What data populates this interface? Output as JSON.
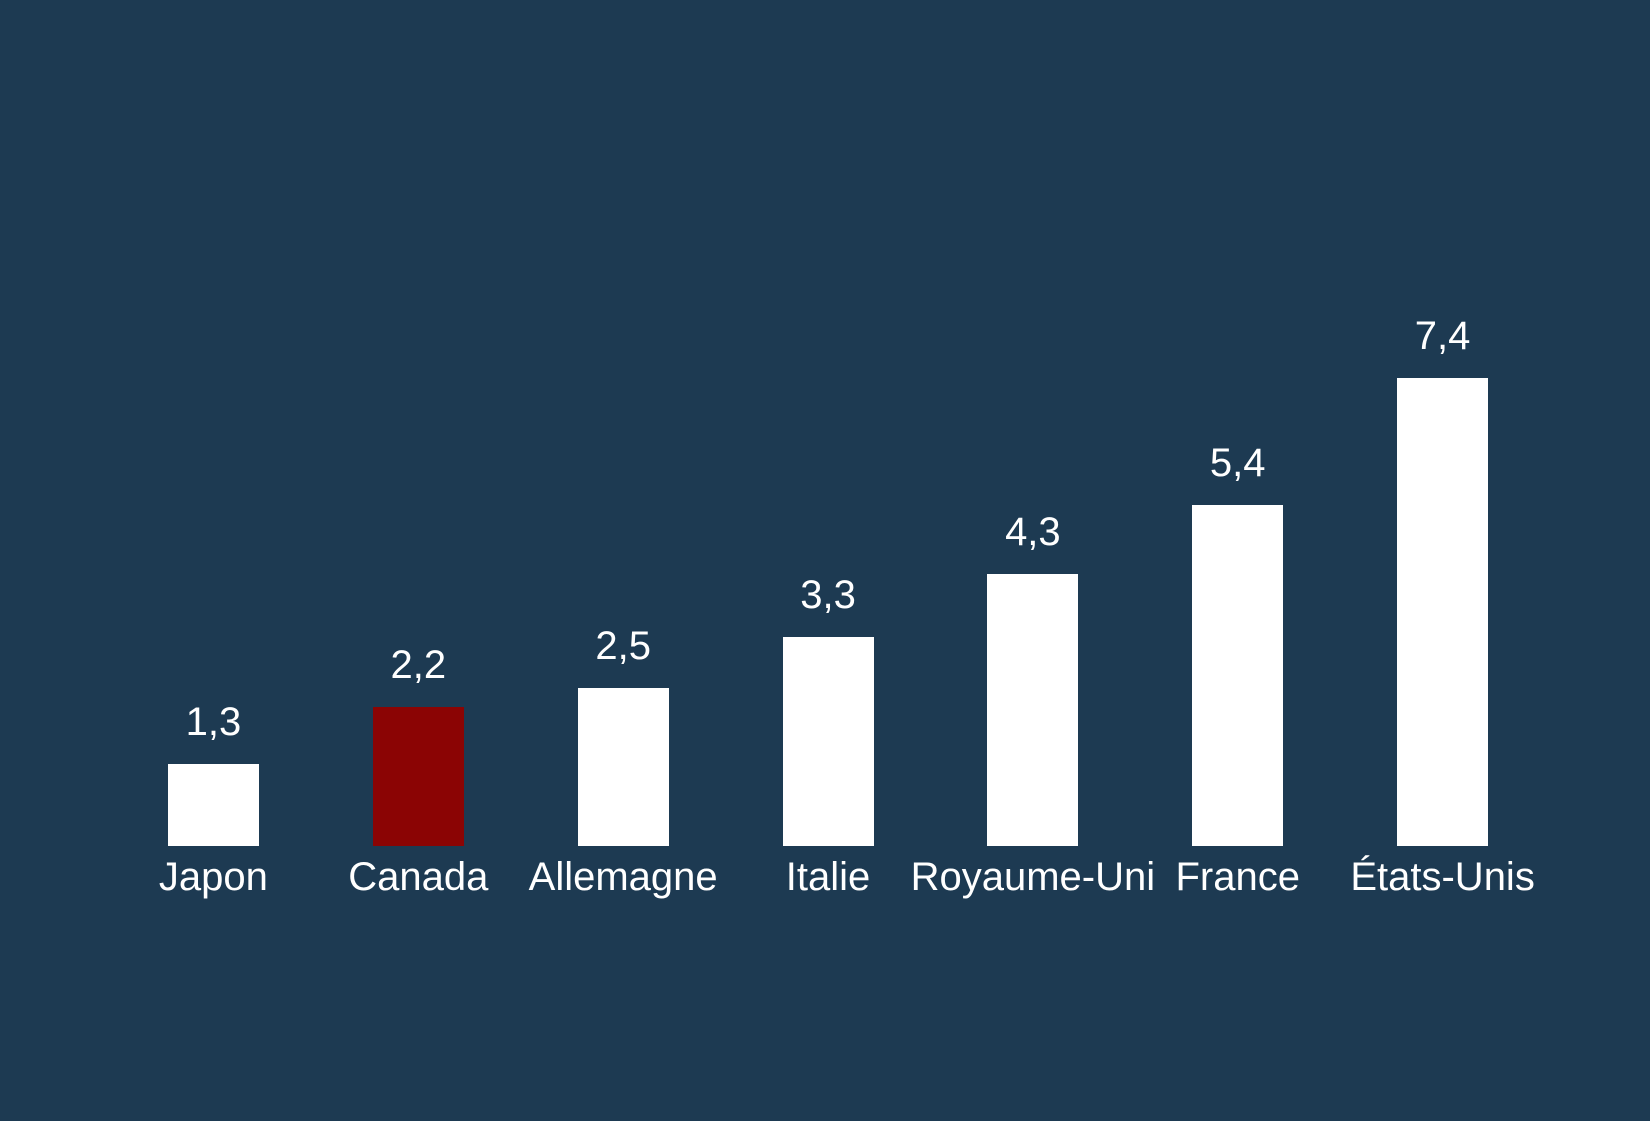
{
  "colors": {
    "background": "#1d3a52",
    "bar_default": "#ffffff",
    "bar_highlight": "#8b0404",
    "text": "#ffffff"
  },
  "chart_data": {
    "type": "bar",
    "title": "",
    "xlabel": "",
    "ylabel": "",
    "categories": [
      "Japon",
      "Canada",
      "Allemagne",
      "Italie",
      "Royaume-Uni",
      "France",
      "États-Unis"
    ],
    "values": [
      1.3,
      2.2,
      2.5,
      3.3,
      4.3,
      5.4,
      7.4
    ],
    "value_labels": [
      "1,3",
      "2,2",
      "2,5",
      "3,3",
      "4,3",
      "5,4",
      "7,4"
    ],
    "highlight_index": 1,
    "highlight_category": "Canada",
    "decimal_style": "comma",
    "ylim": [
      0,
      8
    ],
    "grid": false,
    "legend": false,
    "axes_visible": false,
    "data_labels_position": "above-bar",
    "category_labels_position": "below-bar"
  }
}
